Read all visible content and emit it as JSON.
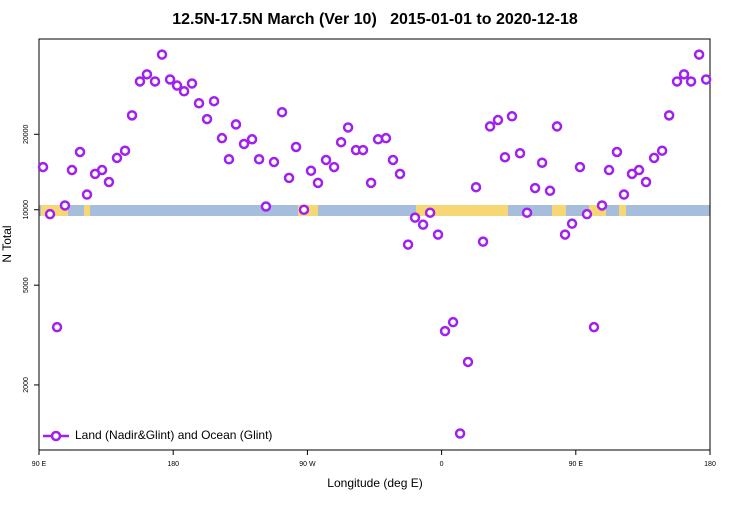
{
  "chart_data": {
    "type": "scatter",
    "title": "12.5N-17.5N March (Ver 10)   2015-01-01 to 2020-12-18",
    "xlabel": "Longitude (deg E)",
    "ylabel": "N Total",
    "log_y": true,
    "legend": "bottom-left",
    "xlim": [
      90,
      540
    ],
    "xticks": [
      {
        "value": 90,
        "label": "90 E"
      },
      180,
      {
        "value": 270,
        "label": "90 W"
      },
      {
        "value": 360,
        "label": "0"
      },
      {
        "value": 450,
        "label": "90 E"
      },
      {
        "value": 540,
        "label": "180"
      }
    ],
    "ylim": [
      1100,
      48000
    ],
    "yticks": [
      2000,
      5000,
      10000,
      20000
    ],
    "x": [
      92.7,
      97.4,
      102.1,
      107.4,
      112.1,
      117.5,
      122.2,
      127.6,
      132.3,
      136.9,
      142.3,
      147.7,
      152.4,
      157.7,
      162.4,
      167.8,
      172.5,
      177.9,
      182.6,
      187.3,
      192.6,
      197.3,
      202.7,
      207.4,
      212.7,
      217.4,
      222.1,
      227.5,
      232.9,
      237.6,
      242.2,
      247.6,
      253.0,
      257.7,
      262.4,
      267.7,
      272.4,
      277.1,
      282.5,
      287.9,
      292.6,
      297.3,
      302.6,
      307.3,
      312.7,
      317.4,
      322.7,
      327.4,
      332.1,
      337.5,
      342.2,
      347.6,
      352.3,
      357.6,
      362.3,
      367.7,
      372.4,
      377.7,
      383.1,
      387.8,
      392.5,
      397.8,
      402.5,
      407.2,
      412.6,
      417.3,
      422.7,
      427.4,
      432.7,
      437.4,
      442.8,
      447.5,
      452.8,
      457.5,
      462.2,
      467.6,
      472.3,
      477.6,
      482.3,
      487.7,
      492.4,
      497.1,
      502.5,
      507.9,
      512.6,
      517.9,
      522.6,
      527.3,
      532.7,
      537.4
    ],
    "series": [
      {
        "name": "Land (Nadir&Glint) and Ocean (Glint)",
        "color": "#a020f0",
        "values": [
          14800,
          9600,
          3400,
          10400,
          14400,
          17000,
          11500,
          13900,
          14400,
          12900,
          16100,
          17200,
          23800,
          32500,
          34700,
          32500,
          41600,
          33100,
          31300,
          29700,
          31900,
          26600,
          23000,
          27100,
          19300,
          15900,
          21900,
          18300,
          19100,
          15900,
          10300,
          15500,
          24500,
          13400,
          17800,
          10000,
          14300,
          12800,
          15800,
          14800,
          18600,
          21300,
          17300,
          17300,
          12800,
          19100,
          19300,
          15800,
          13900,
          7260,
          9300,
          8720,
          9730,
          7960,
          3280,
          3560,
          1280,
          2470,
          12300,
          7460,
          21500,
          22800,
          16200,
          23600,
          16800,
          9730,
          12200,
          15400,
          11900,
          21500,
          7960,
          8800,
          14800,
          9600,
          3400,
          10400,
          14400,
          17000,
          11500,
          13900,
          14400,
          12900,
          16100,
          17200,
          23800,
          32500,
          34700,
          32500,
          41600,
          33100
        ]
      }
    ]
  }
}
